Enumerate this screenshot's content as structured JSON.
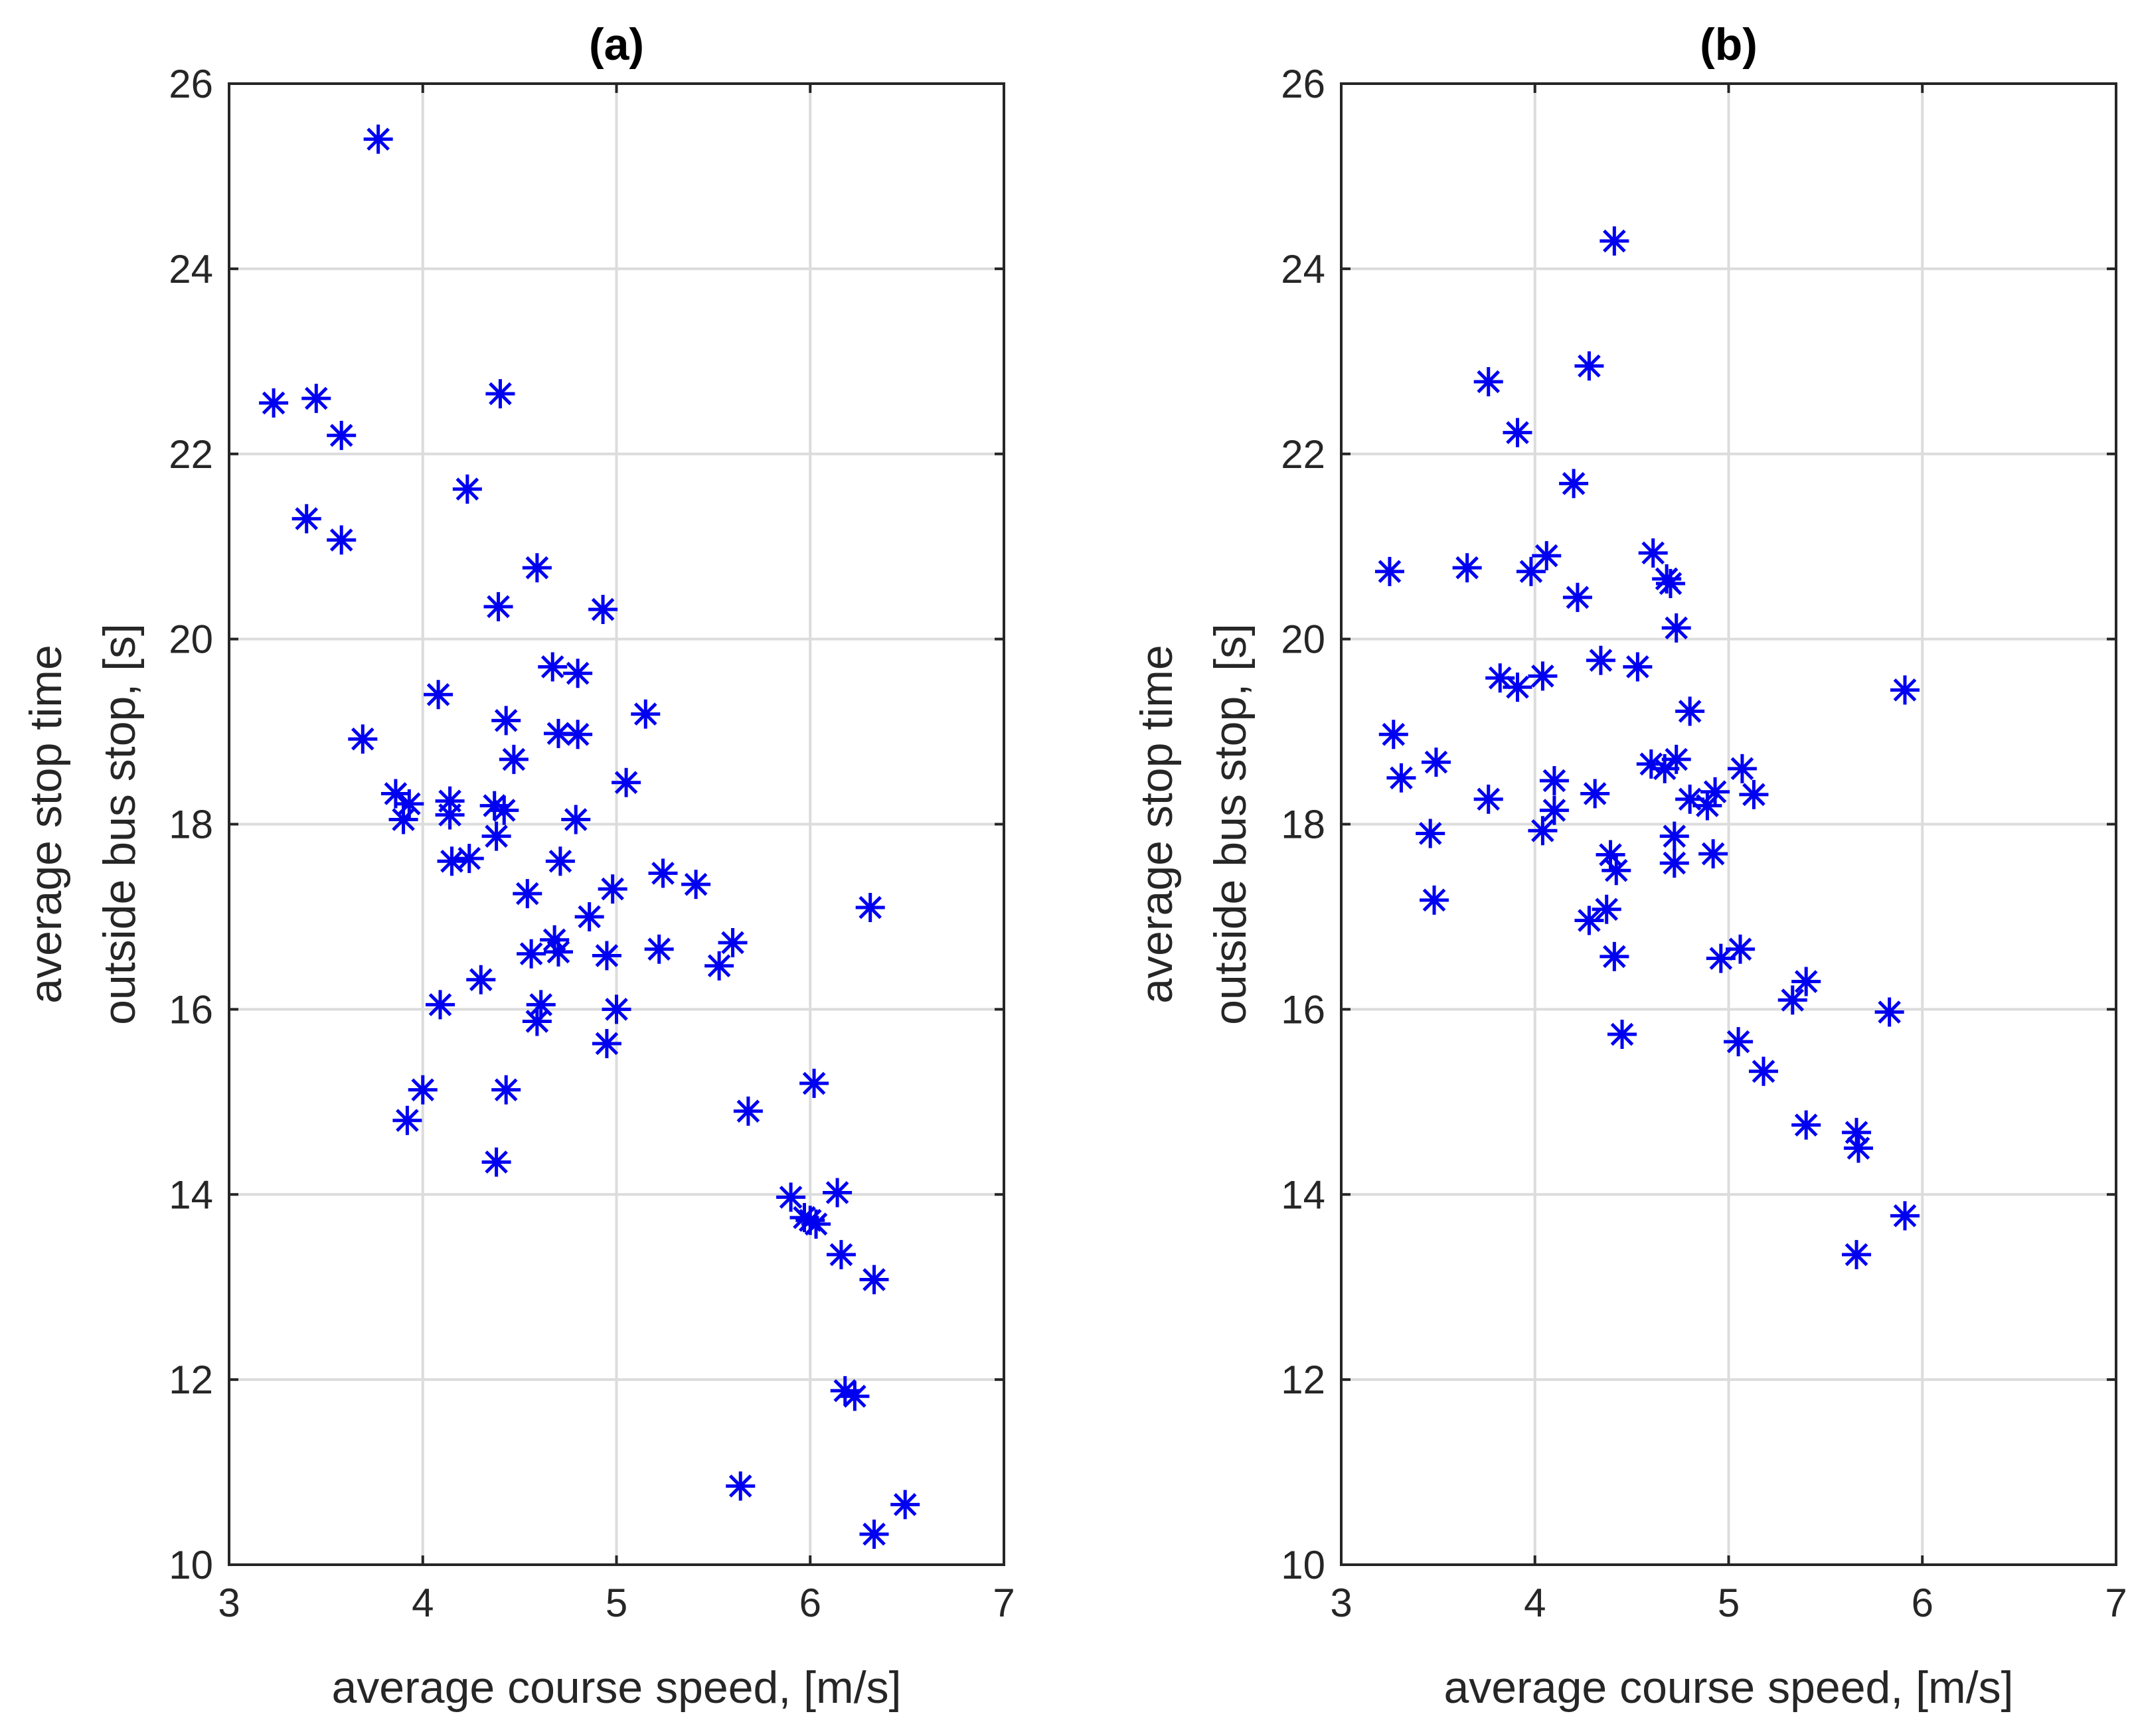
{
  "colors": {
    "marker": "#0000f0",
    "axis": "#262626",
    "grid": "#dcdcdc"
  },
  "chart_data": [
    {
      "type": "scatter",
      "title": "(a)",
      "xlabel": "average course speed, [m/s]",
      "ylabel_lines": [
        "average stop time",
        "outside bus stop, [s]"
      ],
      "xlim": [
        3,
        7
      ],
      "ylim": [
        10,
        26
      ],
      "xticks": [
        3,
        4,
        5,
        6,
        7
      ],
      "yticks": [
        10,
        12,
        14,
        16,
        18,
        20,
        22,
        24,
        26
      ],
      "grid": true,
      "marker": "asterisk",
      "points": [
        [
          3.77,
          25.4
        ],
        [
          3.23,
          22.55
        ],
        [
          3.45,
          22.6
        ],
        [
          3.58,
          22.2
        ],
        [
          4.4,
          22.65
        ],
        [
          3.4,
          21.3
        ],
        [
          3.58,
          21.07
        ],
        [
          4.23,
          21.62
        ],
        [
          4.59,
          20.77
        ],
        [
          4.39,
          20.35
        ],
        [
          4.93,
          20.32
        ],
        [
          4.67,
          19.7
        ],
        [
          4.8,
          19.63
        ],
        [
          4.08,
          19.4
        ],
        [
          5.15,
          19.19
        ],
        [
          4.43,
          19.12
        ],
        [
          3.69,
          18.92
        ],
        [
          4.7,
          18.98
        ],
        [
          4.8,
          18.97
        ],
        [
          4.47,
          18.7
        ],
        [
          5.05,
          18.45
        ],
        [
          3.86,
          18.33
        ],
        [
          3.93,
          18.22
        ],
        [
          4.14,
          18.25
        ],
        [
          4.37,
          18.2
        ],
        [
          4.42,
          18.15
        ],
        [
          3.9,
          18.05
        ],
        [
          4.14,
          18.1
        ],
        [
          4.79,
          18.05
        ],
        [
          4.38,
          17.87
        ],
        [
          4.15,
          17.6
        ],
        [
          4.24,
          17.63
        ],
        [
          4.71,
          17.6
        ],
        [
          5.24,
          17.47
        ],
        [
          5.41,
          17.35
        ],
        [
          4.54,
          17.25
        ],
        [
          4.98,
          17.3
        ],
        [
          6.31,
          17.1
        ],
        [
          4.86,
          17.0
        ],
        [
          4.68,
          16.75
        ],
        [
          5.6,
          16.72
        ],
        [
          4.56,
          16.6
        ],
        [
          4.7,
          16.62
        ],
        [
          4.95,
          16.58
        ],
        [
          5.22,
          16.65
        ],
        [
          5.53,
          16.47
        ],
        [
          4.3,
          16.32
        ],
        [
          4.09,
          16.05
        ],
        [
          4.61,
          16.05
        ],
        [
          5.0,
          16.0
        ],
        [
          4.59,
          15.87
        ],
        [
          4.95,
          15.63
        ],
        [
          4.0,
          15.13
        ],
        [
          4.43,
          15.13
        ],
        [
          6.02,
          15.2
        ],
        [
          3.92,
          14.8
        ],
        [
          5.68,
          14.9
        ],
        [
          4.38,
          14.35
        ],
        [
          5.9,
          13.97
        ],
        [
          6.14,
          14.02
        ],
        [
          5.97,
          13.75
        ],
        [
          6.03,
          13.68
        ],
        [
          6.0,
          13.72
        ],
        [
          6.16,
          13.35
        ],
        [
          6.33,
          13.08
        ],
        [
          6.18,
          11.88
        ],
        [
          6.23,
          11.82
        ],
        [
          5.64,
          10.85
        ],
        [
          6.49,
          10.65
        ],
        [
          6.33,
          10.33
        ]
      ]
    },
    {
      "type": "scatter",
      "title": "(b)",
      "xlabel": "average course speed, [m/s]",
      "ylabel_lines": [
        "average stop time",
        "outside bus stop, [s]"
      ],
      "xlim": [
        3,
        7
      ],
      "ylim": [
        10,
        26
      ],
      "xticks": [
        3,
        4,
        5,
        6,
        7
      ],
      "yticks": [
        10,
        12,
        14,
        16,
        18,
        20,
        22,
        24,
        26
      ],
      "grid": true,
      "marker": "asterisk",
      "points": [
        [
          4.41,
          24.3
        ],
        [
          3.76,
          22.78
        ],
        [
          4.28,
          22.95
        ],
        [
          3.91,
          22.23
        ],
        [
          4.2,
          21.68
        ],
        [
          3.25,
          20.73
        ],
        [
          3.65,
          20.77
        ],
        [
          3.98,
          20.73
        ],
        [
          4.06,
          20.9
        ],
        [
          4.22,
          20.45
        ],
        [
          4.61,
          20.93
        ],
        [
          4.68,
          20.65
        ],
        [
          4.7,
          20.6
        ],
        [
          4.73,
          20.12
        ],
        [
          3.82,
          19.58
        ],
        [
          3.91,
          19.48
        ],
        [
          4.04,
          19.6
        ],
        [
          4.34,
          19.77
        ],
        [
          4.53,
          19.7
        ],
        [
          4.8,
          19.22
        ],
        [
          5.91,
          19.45
        ],
        [
          3.27,
          18.97
        ],
        [
          3.31,
          18.5
        ],
        [
          3.49,
          18.67
        ],
        [
          4.1,
          18.47
        ],
        [
          4.31,
          18.33
        ],
        [
          4.6,
          18.65
        ],
        [
          4.67,
          18.6
        ],
        [
          4.73,
          18.7
        ],
        [
          5.07,
          18.6
        ],
        [
          3.76,
          18.27
        ],
        [
          4.1,
          18.15
        ],
        [
          4.8,
          18.27
        ],
        [
          4.89,
          18.2
        ],
        [
          4.93,
          18.35
        ],
        [
          5.13,
          18.32
        ],
        [
          3.46,
          17.9
        ],
        [
          4.04,
          17.93
        ],
        [
          4.72,
          17.87
        ],
        [
          4.39,
          17.67
        ],
        [
          4.42,
          17.5
        ],
        [
          4.72,
          17.58
        ],
        [
          4.92,
          17.68
        ],
        [
          3.48,
          17.18
        ],
        [
          4.28,
          16.96
        ],
        [
          4.37,
          17.08
        ],
        [
          4.41,
          16.57
        ],
        [
          4.96,
          16.55
        ],
        [
          5.06,
          16.65
        ],
        [
          5.33,
          16.1
        ],
        [
          5.4,
          16.3
        ],
        [
          5.83,
          15.97
        ],
        [
          4.45,
          15.73
        ],
        [
          5.05,
          15.65
        ],
        [
          5.18,
          15.33
        ],
        [
          5.4,
          14.75
        ],
        [
          5.66,
          14.67
        ],
        [
          5.67,
          14.5
        ],
        [
          5.91,
          13.77
        ],
        [
          5.66,
          13.35
        ]
      ]
    }
  ]
}
